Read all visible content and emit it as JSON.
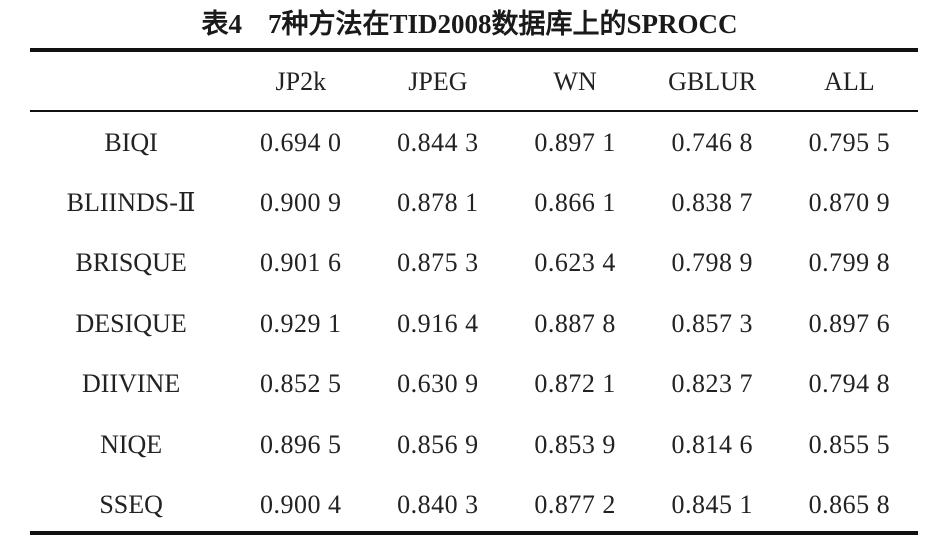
{
  "caption": {
    "number": "表4",
    "text": "7种方法在TID2008数据库上的SPROCC"
  },
  "table": {
    "columns": [
      "",
      "JP2k",
      "JPEG",
      "WN",
      "GBLUR",
      "ALL"
    ],
    "rows": [
      {
        "method": "BIQI",
        "values": [
          "0.694 0",
          "0.844 3",
          "0.897 1",
          "0.746 8",
          "0.795 5"
        ]
      },
      {
        "method": "BLIINDS-Ⅱ",
        "values": [
          "0.900 9",
          "0.878 1",
          "0.866 1",
          "0.838 7",
          "0.870 9"
        ]
      },
      {
        "method": "BRISQUE",
        "values": [
          "0.901 6",
          "0.875 3",
          "0.623 4",
          "0.798 9",
          "0.799 8"
        ]
      },
      {
        "method": "DESIQUE",
        "values": [
          "0.929 1",
          "0.916 4",
          "0.887 8",
          "0.857 3",
          "0.897 6"
        ]
      },
      {
        "method": "DIIVINE",
        "values": [
          "0.852 5",
          "0.630 9",
          "0.872 1",
          "0.823 7",
          "0.794 8"
        ]
      },
      {
        "method": "NIQE",
        "values": [
          "0.896 5",
          "0.856 9",
          "0.853 9",
          "0.814 6",
          "0.855 5"
        ]
      },
      {
        "method": "SSEQ",
        "values": [
          "0.900 4",
          "0.840 3",
          "0.877 2",
          "0.845 1",
          "0.865 8"
        ]
      }
    ]
  }
}
